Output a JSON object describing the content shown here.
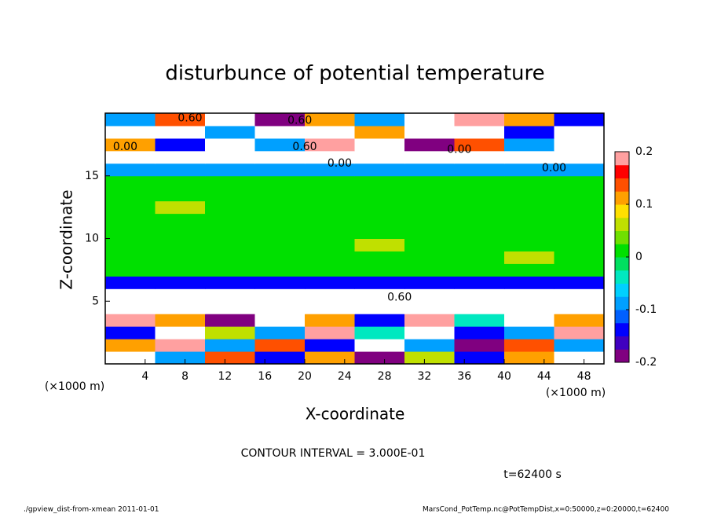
{
  "chart_data": {
    "type": "heatmap",
    "title": "disturbunce of potential temperature",
    "x_label": "X-coordinate",
    "y_label": "Z-coordinate",
    "x_unit": "(×1000 m)",
    "y_unit": "(×1000 m)",
    "xlim": [
      0,
      50
    ],
    "ylim": [
      0,
      20
    ],
    "xticks": [
      4,
      8,
      12,
      16,
      20,
      24,
      28,
      32,
      36,
      40,
      44,
      48
    ],
    "yticks": [
      5,
      10,
      15
    ],
    "x": [
      2.5,
      7.5,
      12.5,
      17.5,
      22.5,
      27.5,
      32.5,
      37.5,
      42.5,
      47.5
    ],
    "y": [
      0.5,
      1.5,
      2.5,
      3.5,
      4.5,
      5.5,
      6.5,
      7.5,
      8.5,
      9.5,
      10.5,
      11.5,
      12.5,
      13.5,
      14.5,
      15.5,
      16.5,
      17.5,
      18.5,
      19.5
    ],
    "z": [
      [
        0.3,
        -0.1,
        0.15,
        -0.15,
        0.1,
        -0.2,
        0.05,
        -0.15,
        0.1,
        0.3
      ],
      [
        0.1,
        0.2,
        -0.1,
        0.15,
        -0.15,
        0.3,
        -0.1,
        -0.2,
        0.15,
        -0.1
      ],
      [
        -0.15,
        0.3,
        0.05,
        -0.1,
        0.2,
        -0.05,
        0.3,
        -0.15,
        -0.1,
        0.2
      ],
      [
        0.2,
        0.1,
        -0.2,
        0.3,
        0.1,
        -0.15,
        0.2,
        -0.05,
        0.3,
        0.1
      ],
      [
        0.3,
        0.3,
        0.3,
        0.3,
        0.3,
        0.3,
        0.3,
        0.3,
        0.3,
        0.3
      ],
      [
        0.3,
        0.3,
        0.3,
        0.3,
        0.3,
        0.3,
        0.3,
        0.3,
        0.3,
        0.3
      ],
      [
        -0.13,
        -0.13,
        -0.13,
        -0.13,
        -0.13,
        -0.13,
        -0.13,
        -0.13,
        -0.13,
        -0.13
      ],
      [
        0,
        0,
        0,
        0,
        0,
        0,
        0,
        0,
        0,
        0
      ],
      [
        0,
        0,
        0,
        0,
        0,
        0,
        0,
        0,
        0.05,
        0
      ],
      [
        0,
        0,
        0,
        0,
        0,
        0.05,
        0,
        0,
        0,
        0
      ],
      [
        0,
        0,
        0,
        0,
        0,
        0,
        0,
        0,
        0,
        0
      ],
      [
        0,
        0,
        0,
        0,
        0,
        0,
        0,
        0,
        0,
        0
      ],
      [
        0,
        0.05,
        0,
        0,
        0,
        0,
        0,
        0,
        0,
        0
      ],
      [
        0,
        0,
        0,
        0,
        0,
        0,
        0,
        0,
        0,
        0
      ],
      [
        0,
        0,
        0,
        0,
        0,
        0,
        0,
        0,
        0,
        0
      ],
      [
        -0.1,
        -0.1,
        -0.1,
        -0.1,
        -0.1,
        -0.1,
        -0.1,
        -0.1,
        -0.1,
        -0.1
      ],
      [
        0.3,
        0.3,
        0.3,
        0.3,
        0.3,
        0.3,
        0.3,
        0.3,
        0.3,
        0.3
      ],
      [
        0.1,
        -0.15,
        0.3,
        -0.1,
        0.2,
        0.3,
        -0.2,
        0.15,
        -0.1,
        0.3
      ],
      [
        0.3,
        0.3,
        -0.1,
        0.3,
        0.3,
        0.1,
        0.3,
        0.3,
        -0.15,
        0.3
      ],
      [
        -0.1,
        0.15,
        0.3,
        -0.2,
        0.1,
        -0.1,
        0.3,
        0.2,
        0.1,
        -0.15
      ]
    ],
    "colormap": [
      "#800080",
      "#4000c0",
      "#0000ff",
      "#0060ff",
      "#00a0ff",
      "#00d0ff",
      "#00e8c0",
      "#00e060",
      "#00e000",
      "#70e000",
      "#c0e000",
      "#ffe000",
      "#ffa000",
      "#ff5000",
      "#ff0000",
      "#ffa0a0"
    ],
    "clim": [
      -0.2,
      0.2
    ],
    "cticks": [
      -0.2,
      -0.1,
      0,
      0.1,
      0.2
    ],
    "annotations": [
      {
        "x": 8.5,
        "y": 19.6,
        "text": "0.60"
      },
      {
        "x": 19.5,
        "y": 19.4,
        "text": "0.60"
      },
      {
        "x": 2,
        "y": 17.3,
        "text": "0.00"
      },
      {
        "x": 20,
        "y": 17.3,
        "text": "0.60"
      },
      {
        "x": 35.5,
        "y": 17.1,
        "text": "0.00"
      },
      {
        "x": 23.5,
        "y": 16.0,
        "text": "0.00"
      },
      {
        "x": 45,
        "y": 15.6,
        "text": "0.00"
      },
      {
        "x": 29.5,
        "y": 5.3,
        "text": "0.60"
      }
    ],
    "contour_interval": "CONTOUR INTERVAL = 3.000E-01",
    "time": "t=62400 s",
    "footer_left": "./gpview_dist-from-xmean  2011-01-01",
    "footer_right": "MarsCond_PotTemp.nc@PotTempDist,x=0:50000,z=0:20000,t=62400"
  }
}
